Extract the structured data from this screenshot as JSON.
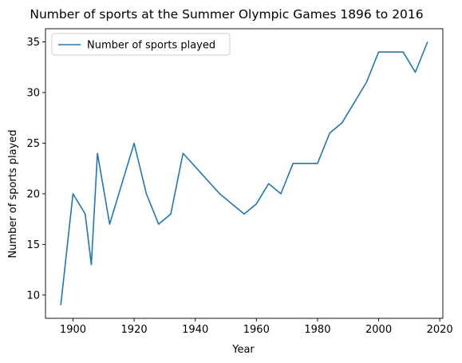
{
  "chart_data": {
    "type": "line",
    "title": "Number of sports at the Summer Olympic Games 1896 to 2016",
    "xlabel": "Year",
    "ylabel": "Number of sports played",
    "xlim": [
      1891,
      2021
    ],
    "ylim": [
      7.7,
      36.3
    ],
    "xticks": [
      1900,
      1920,
      1940,
      1960,
      1980,
      2000,
      2020
    ],
    "yticks": [
      10,
      15,
      20,
      25,
      30,
      35
    ],
    "grid": false,
    "legend": "top-left",
    "series": [
      {
        "name": "Number of sports played",
        "color": "#1f77b4",
        "x": [
          1896,
          1900,
          1904,
          1906,
          1908,
          1912,
          1920,
          1924,
          1928,
          1932,
          1936,
          1948,
          1952,
          1956,
          1960,
          1964,
          1968,
          1972,
          1976,
          1980,
          1984,
          1988,
          1992,
          1996,
          2000,
          2004,
          2008,
          2012,
          2016
        ],
        "y": [
          9,
          20,
          18,
          13,
          24,
          17,
          25,
          20,
          17,
          18,
          24,
          20,
          19,
          18,
          19,
          21,
          20,
          23,
          23,
          23,
          26,
          27,
          29,
          31,
          34,
          34,
          34,
          32,
          35
        ]
      }
    ]
  }
}
